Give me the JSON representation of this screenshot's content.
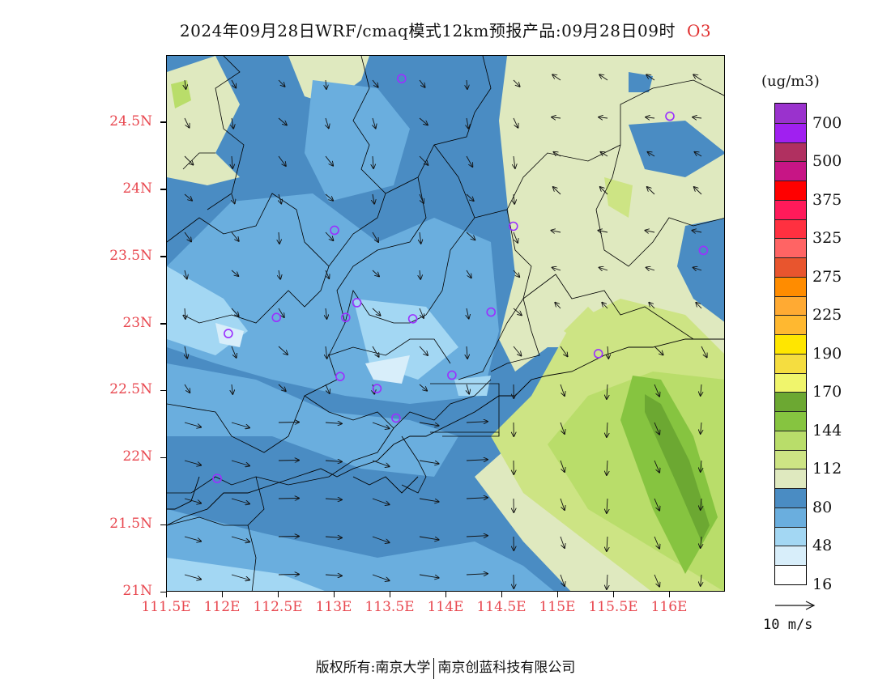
{
  "title": {
    "main": "2024年09月28日WRF/cmaq模式12km预报产品:09月28日09时",
    "pollutant": "O3"
  },
  "map": {
    "lon_min": 111.5,
    "lon_max": 116.5,
    "lat_min": 21.0,
    "lat_max": 25.0,
    "y_ticks": [
      {
        "lat": 24.5,
        "label": "24.5N"
      },
      {
        "lat": 24.0,
        "label": "24N"
      },
      {
        "lat": 23.5,
        "label": "23.5N"
      },
      {
        "lat": 23.0,
        "label": "23N"
      },
      {
        "lat": 22.5,
        "label": "22.5N"
      },
      {
        "lat": 22.0,
        "label": "22N"
      },
      {
        "lat": 21.5,
        "label": "21.5N"
      },
      {
        "lat": 21.0,
        "label": "21N"
      }
    ],
    "x_ticks": [
      {
        "lon": 111.5,
        "label": "111.5E"
      },
      {
        "lon": 112.0,
        "label": "112E"
      },
      {
        "lon": 112.5,
        "label": "112.5E"
      },
      {
        "lon": 113.0,
        "label": "113E"
      },
      {
        "lon": 113.5,
        "label": "113.5E"
      },
      {
        "lon": 114.0,
        "label": "114E"
      },
      {
        "lon": 114.5,
        "label": "114.5E"
      },
      {
        "lon": 115.0,
        "label": "115E"
      },
      {
        "lon": 115.5,
        "label": "115.5E"
      },
      {
        "lon": 116.0,
        "label": "116E"
      }
    ],
    "stations": [
      {
        "lon": 113.6,
        "lat": 24.83
      },
      {
        "lon": 116.0,
        "lat": 24.55
      },
      {
        "lon": 113.0,
        "lat": 23.7
      },
      {
        "lon": 114.6,
        "lat": 23.73
      },
      {
        "lon": 116.3,
        "lat": 23.55
      },
      {
        "lon": 113.2,
        "lat": 23.16
      },
      {
        "lon": 112.48,
        "lat": 23.05
      },
      {
        "lon": 113.1,
        "lat": 23.05
      },
      {
        "lon": 113.7,
        "lat": 23.04
      },
      {
        "lon": 114.4,
        "lat": 23.09
      },
      {
        "lon": 112.05,
        "lat": 22.93
      },
      {
        "lon": 115.36,
        "lat": 22.78
      },
      {
        "lon": 113.05,
        "lat": 22.61
      },
      {
        "lon": 113.38,
        "lat": 22.52
      },
      {
        "lon": 114.05,
        "lat": 22.62
      },
      {
        "lon": 113.55,
        "lat": 22.3
      },
      {
        "lon": 111.95,
        "lat": 21.85
      }
    ],
    "station_color": "#9b30ff"
  },
  "legend": {
    "unit": "(ug/m3)",
    "colors": [
      "#9a32cd",
      "#a020f0",
      "#b03060",
      "#c71585",
      "#ff0000",
      "#ff1a5a",
      "#ff3040",
      "#ff6464",
      "#e8552e",
      "#ff8c00",
      "#ffaa33",
      "#ffb830",
      "#ffe600",
      "#f5dd40",
      "#f0f56c",
      "#6ca832",
      "#86c440",
      "#b9dd6a",
      "#cde484",
      "#dfe9bf",
      "#4a8cc3",
      "#6aaede",
      "#a3d7f3",
      "#d8eefa",
      "#ffffff"
    ],
    "labels": [
      "700",
      "500",
      "375",
      "325",
      "275",
      "225",
      "190",
      "170",
      "144",
      "112",
      "80",
      "48",
      "16"
    ]
  },
  "reference_vector": {
    "label": "10 m/s"
  },
  "footer": {
    "left": "版权所有:南京大学",
    "right": "南京创蓝科技有限公司"
  }
}
